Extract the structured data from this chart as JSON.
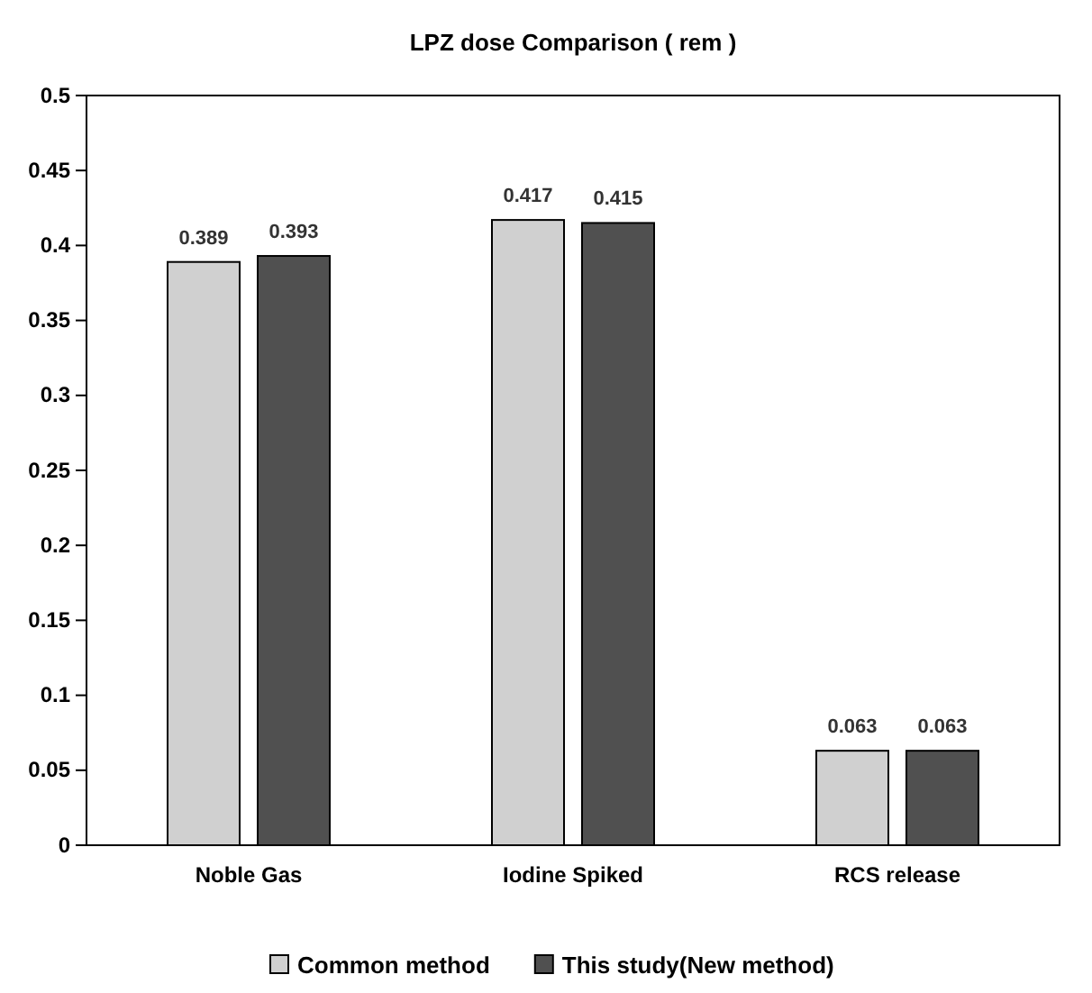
{
  "chart_data": {
    "type": "bar",
    "title": "LPZ dose Comparison ( rem )",
    "categories": [
      "Noble Gas",
      "Iodine Spiked",
      "RCS release"
    ],
    "series": [
      {
        "name": "Common method",
        "color": "#d0d0d0",
        "values": [
          0.389,
          0.417,
          0.063
        ]
      },
      {
        "name": "This study(New method)",
        "color": "#505050",
        "values": [
          0.393,
          0.415,
          0.063
        ]
      }
    ],
    "ylim": [
      0,
      0.5
    ],
    "yticks": [
      {
        "value": 0,
        "label": "0"
      },
      0.05,
      0.1,
      0.15,
      0.2,
      0.25,
      0.3,
      0.35,
      0.4,
      0.45,
      0.5
    ],
    "data_labels": true,
    "legend": "bottom",
    "grid": false
  }
}
